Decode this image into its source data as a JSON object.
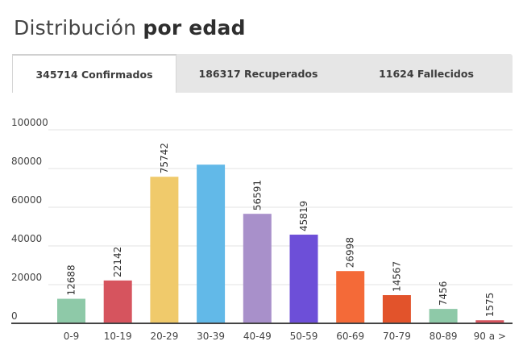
{
  "header": {
    "title_regular": "Distribución",
    "title_bold": "por edad"
  },
  "tabs": [
    {
      "label": "345714 Confirmados",
      "active": true
    },
    {
      "label": "186317 Recuperados",
      "active": false
    },
    {
      "label": "11624 Fallecidos",
      "active": false
    }
  ],
  "chart_data": {
    "type": "bar",
    "title": "",
    "xlabel": "",
    "ylabel": "",
    "ylim": [
      0,
      100000
    ],
    "yticks": [
      0,
      20000,
      40000,
      60000,
      80000,
      100000
    ],
    "grid": true,
    "categories": [
      "0-9",
      "10-19",
      "20-29",
      "30-39",
      "40-49",
      "50-59",
      "60-69",
      "70-79",
      "80-89",
      "90 a >"
    ],
    "values": [
      12688,
      22142,
      75742,
      82000,
      56591,
      45819,
      26998,
      14567,
      7456,
      1575
    ],
    "data_labels": [
      "12688",
      "22142",
      "75742",
      "",
      "56591",
      "45819",
      "26998",
      "14567",
      "7456",
      "1575"
    ],
    "colors": [
      "#8ec9a8",
      "#d6545e",
      "#f0ca6b",
      "#62b9e8",
      "#a890ca",
      "#6d4fd8",
      "#f46a38",
      "#e2532b",
      "#8ec9a8",
      "#d6545e"
    ]
  }
}
